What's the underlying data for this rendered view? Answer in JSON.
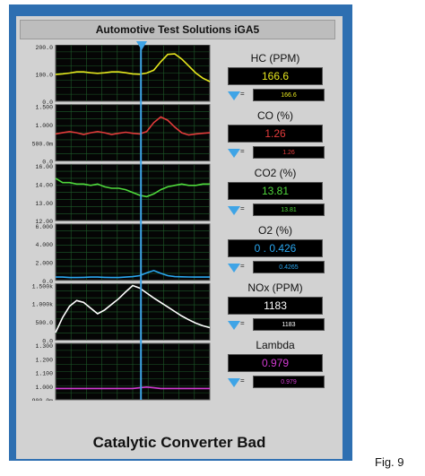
{
  "window": {
    "title": "Automotive Test Solutions iGA5"
  },
  "colors": {
    "frame": "#2e6fb1",
    "panel": "#d2d2d2",
    "cursor": "#3ea4e6",
    "grid": "#1e5a2a"
  },
  "chart_data": [
    {
      "type": "line",
      "series": [
        {
          "name": "HC (PPM)",
          "color": "#e6e61e",
          "values": [
            95,
            97,
            100,
            104,
            104,
            101,
            99,
            101,
            104,
            104,
            101,
            97,
            96,
            100,
            110,
            140,
            166,
            168,
            150,
            125,
            100,
            82,
            70
          ]
        }
      ],
      "ylim": [
        0,
        200
      ],
      "yticks": [
        "200.0",
        "100.0",
        "0.0"
      ]
    },
    {
      "type": "line",
      "series": [
        {
          "name": "CO (%)",
          "color": "#e23b3b",
          "values": [
            0.98,
            1.0,
            1.02,
            1.0,
            0.97,
            1.0,
            1.02,
            1.0,
            0.97,
            0.99,
            1.01,
            0.99,
            0.98,
            1.02,
            1.18,
            1.28,
            1.22,
            1.1,
            1.0,
            0.96,
            0.98,
            0.99,
            1.0
          ]
        }
      ],
      "ylim": [
        0.5,
        1.5
      ],
      "yticks": [
        "1.500",
        "1.000",
        "500.0m",
        "0.0"
      ]
    },
    {
      "type": "line",
      "series": [
        {
          "name": "CO2 (%)",
          "color": "#4fd83c",
          "values": [
            15.0,
            14.7,
            14.7,
            14.6,
            14.6,
            14.5,
            14.6,
            14.4,
            14.3,
            14.3,
            14.2,
            14.0,
            13.8,
            13.7,
            13.9,
            14.2,
            14.4,
            14.5,
            14.6,
            14.5,
            14.5,
            14.6,
            14.6
          ]
        }
      ],
      "ylim": [
        12,
        16
      ],
      "yticks": [
        "16.00",
        "14.00",
        "13.00",
        "12.00"
      ]
    },
    {
      "type": "line",
      "series": [
        {
          "name": "O2 (%)",
          "color": "#2aa7f0",
          "values": [
            0.35,
            0.35,
            0.3,
            0.3,
            0.32,
            0.35,
            0.35,
            0.32,
            0.3,
            0.3,
            0.35,
            0.4,
            0.5,
            0.8,
            1.05,
            0.75,
            0.5,
            0.4,
            0.38,
            0.36,
            0.35,
            0.35,
            0.35
          ]
        }
      ],
      "ylim": [
        0,
        6
      ],
      "yticks": [
        "6.000",
        "4.000",
        "2.000",
        "0.0"
      ]
    },
    {
      "type": "line",
      "series": [
        {
          "name": "NOx (PPM)",
          "color": "#ffffff",
          "values": [
            200,
            600,
            900,
            1050,
            1000,
            850,
            700,
            800,
            950,
            1100,
            1280,
            1450,
            1380,
            1250,
            1120,
            1000,
            880,
            760,
            640,
            540,
            450,
            380,
            330
          ]
        }
      ],
      "ylim": [
        0,
        1500
      ],
      "yticks": [
        "1.500k",
        "1.000k",
        "500.0",
        "0.0"
      ]
    },
    {
      "type": "line",
      "series": [
        {
          "name": "Lambda",
          "color": "#d23ad2",
          "values": [
            0.98,
            0.98,
            0.98,
            0.98,
            0.98,
            0.98,
            0.98,
            0.98,
            0.98,
            0.98,
            0.98,
            0.98,
            0.985,
            0.99,
            0.985,
            0.98,
            0.98,
            0.98,
            0.98,
            0.98,
            0.98,
            0.98,
            0.98
          ]
        }
      ],
      "ylim": [
        0.9,
        1.3
      ],
      "yticks": [
        "1.300",
        "1.200",
        "1.100",
        "1.000",
        "900.0m"
      ]
    }
  ],
  "readouts": [
    {
      "label": "HC (PPM)",
      "value": "166.6",
      "cursor_value": "166.6",
      "color": "#e6e61e"
    },
    {
      "label": "CO (%)",
      "value": "1.26",
      "cursor_value": "1.26",
      "color": "#e23b3b"
    },
    {
      "label": "CO2 (%)",
      "value": "13.81",
      "cursor_value": "13.81",
      "color": "#4fd83c"
    },
    {
      "label": "O2 (%)",
      "value": "0 . 0.426",
      "cursor_value": "0.4265",
      "color": "#2aa7f0"
    },
    {
      "label": "NOx (PPM)",
      "value": "1183",
      "cursor_value": "1183",
      "color": "#ffffff"
    },
    {
      "label": "Lambda",
      "value": "0.979",
      "cursor_value": "0.979",
      "color": "#d23ad2"
    }
  ],
  "cursor": {
    "equals": "="
  },
  "status": "Catalytic Converter Bad",
  "figure_label": "Fig. 9"
}
